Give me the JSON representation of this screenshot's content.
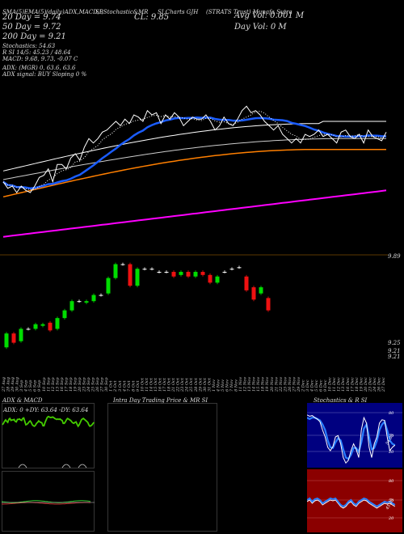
{
  "header": {
    "top_line": [
      "SMA(5)EMA(5)(daily)ADX,MACD,B",
      "SI,Stochastic&MR",
      "SI,Charts GJH",
      "(STRATS Trust) Munafa Sutra"
    ],
    "cl": "CL: 9.85",
    "ma20": "20  Day = 9.74",
    "ma50": "50  Day = 9.72",
    "ma200": "200  Day = 9.21",
    "stoch": "Stochastics: 54.63",
    "rsi": "R                SI 14/5: 45.23 / 48.64",
    "macd": "MACD: 9.68, 9.73, -0.07 C",
    "avg_vol": "Avg Vol: 0.001 M",
    "day_vol": "Day Vol: 0   M",
    "adx": "ADX:                              (MGR) 0, 63.6,  63.6",
    "adx_signal": "ADX  signal:                                     BUY Sloping 0 %"
  },
  "price_axis": {
    "top_label": "9.89",
    "low1": "9.25",
    "low2": "9.21",
    "low3": "9.21"
  },
  "dates": [
    "27 Aug",
    "28 Aug",
    "29 Aug",
    "30 Aug",
    "3 Sep",
    "4 Sep",
    "5 Sep",
    "6 Sep",
    "9 Sep",
    "10 Sep",
    "11 Sep",
    "12 Sep",
    "13 Sep",
    "16 Sep",
    "17 Sep",
    "18 Sep",
    "19 Sep",
    "20 Sep",
    "23 Sep",
    "24 Sep",
    "25 Sep",
    "26 Sep",
    "27 Sep",
    "30 Sep",
    "1 Oct",
    "2 Oct",
    "3 Oct",
    "4 Oct",
    "7 Oct",
    "8 Oct",
    "9 Oct",
    "10 Oct",
    "11 Oct",
    "14 Oct",
    "15 Oct",
    "16 Oct",
    "17 Oct",
    "18 Oct",
    "21 Oct",
    "22 Oct",
    "23 Oct",
    "24 Oct",
    "25 Oct",
    "28 Oct",
    "29 Oct",
    "30 Oct",
    "31 Oct",
    "1 Nov",
    "4 Nov",
    "5 Nov",
    "6 Nov",
    "7 Nov",
    "8 Nov",
    "11 Nov",
    "12 Nov",
    "13 Nov",
    "14 Nov",
    "15 Nov",
    "18 Nov",
    "19 Nov",
    "20 Nov",
    "21 Nov",
    "22 Nov",
    "25 Nov",
    "26 Nov",
    "27 Nov",
    "29 Nov",
    "2 Dec",
    "3 Dec",
    "4 Dec",
    "5 Dec",
    "6 Dec",
    "9 Dec",
    "10 Dec",
    "11 Dec",
    "12 Dec",
    "13 Dec",
    "16 Dec",
    "17 Dec",
    "18 Dec",
    "19 Dec",
    "20 Dec",
    "23 Dec",
    "24 Dec",
    "26 Dec",
    "27 Dec"
  ],
  "panels": {
    "adx_title": "ADX  & MACD",
    "adx_values": "ADX: 0   +DY: 63.64   -DY: 63.64",
    "intraday_title": "Intra  Day Trading Price  & MR                   SI",
    "stoch_title": "Stochastics & R                   SI",
    "stoch_ticks": [
      "80",
      "50",
      "20"
    ],
    "stoch_val": "54.63",
    "rsi_ticks": [
      "80",
      "50",
      "20"
    ],
    "rsi_val": "45.23"
  },
  "colors": {
    "price": "#ffffff",
    "dotted": "#ffffff",
    "ma20": "#1a5cff",
    "ma50": "#cccccc",
    "ma100": "#ffffff",
    "ma200": "#ff7f00",
    "ma_long": "#ff00ff",
    "up": "#00dd00",
    "down": "#ee1111",
    "adx": "#44cc00",
    "rsi_bg": "#8b0000",
    "stoch_bg": "#000080"
  },
  "chart_data": {
    "type": "line",
    "title": "",
    "series": [
      {
        "values": [
          9.52,
          9.49,
          9.5,
          9.47,
          9.5,
          9.48,
          9.47,
          9.5,
          9.54,
          9.55,
          9.58,
          9.52,
          9.6,
          9.6,
          9.58,
          9.63,
          9.65,
          9.62,
          9.68,
          9.72,
          9.7,
          9.72,
          9.75,
          9.76,
          9.78,
          9.8,
          9.78,
          9.81,
          9.79,
          9.83,
          9.82,
          9.8,
          9.85,
          9.83,
          9.84,
          9.79,
          9.83,
          9.81,
          9.84,
          9.82,
          9.78,
          9.8,
          9.82,
          9.81,
          9.81,
          9.83,
          9.8,
          9.76,
          9.78,
          9.82,
          9.79,
          9.78,
          9.81,
          9.85,
          9.87,
          9.84,
          9.85,
          9.83,
          9.8,
          9.78,
          9.76,
          9.78,
          9.74,
          9.72,
          9.7,
          9.72,
          9.7,
          9.74,
          9.73,
          9.74,
          9.76,
          9.73,
          9.74,
          9.72,
          9.7,
          9.75,
          9.76,
          9.73,
          9.72,
          9.74,
          9.7,
          9.76,
          9.73,
          9.72,
          9.71,
          9.75
        ]
      }
    ],
    "candles": [
      {
        "o": 9.21,
        "c": 9.3,
        "h": 9.31,
        "l": 9.2
      },
      {
        "o": 9.3,
        "c": 9.24,
        "h": 9.31,
        "l": 9.23
      },
      {
        "o": 9.25,
        "c": 9.33,
        "h": 9.34,
        "l": 9.24
      },
      {
        "o": 9.33,
        "c": 9.33,
        "h": 9.34,
        "l": 9.32
      },
      {
        "o": 9.33,
        "c": 9.36,
        "h": 9.37,
        "l": 9.32
      },
      {
        "o": 9.35,
        "c": 9.36,
        "h": 9.37,
        "l": 9.34
      },
      {
        "o": 9.37,
        "c": 9.32,
        "h": 9.38,
        "l": 9.31
      },
      {
        "o": 9.33,
        "c": 9.4,
        "h": 9.41,
        "l": 9.32
      },
      {
        "o": 9.4,
        "c": 9.45,
        "h": 9.46,
        "l": 9.39
      },
      {
        "o": 9.45,
        "c": 9.51,
        "h": 9.52,
        "l": 9.44
      },
      {
        "o": 9.51,
        "c": 9.51,
        "h": 9.52,
        "l": 9.5
      },
      {
        "o": 9.5,
        "c": 9.51,
        "h": 9.52,
        "l": 9.49
      },
      {
        "o": 9.51,
        "c": 9.55,
        "h": 9.56,
        "l": 9.5
      },
      {
        "o": 9.55,
        "c": 9.55,
        "h": 9.56,
        "l": 9.54
      },
      {
        "o": 9.56,
        "c": 9.66,
        "h": 9.67,
        "l": 9.55
      },
      {
        "o": 9.66,
        "c": 9.75,
        "h": 9.76,
        "l": 9.65
      },
      {
        "o": 9.75,
        "c": 9.75,
        "h": 9.76,
        "l": 9.74
      },
      {
        "o": 9.75,
        "c": 9.61,
        "h": 9.76,
        "l": 9.6
      },
      {
        "o": 9.61,
        "c": 9.72,
        "h": 9.73,
        "l": 9.6
      },
      {
        "o": 9.72,
        "c": 9.72,
        "h": 9.73,
        "l": 9.71
      },
      {
        "o": 9.72,
        "c": 9.72,
        "h": 9.73,
        "l": 9.71
      },
      {
        "o": 9.7,
        "c": 9.7,
        "h": 9.71,
        "l": 9.69
      },
      {
        "o": 9.7,
        "c": 9.7,
        "h": 9.71,
        "l": 9.69
      },
      {
        "o": 9.7,
        "c": 9.67,
        "h": 9.71,
        "l": 9.66
      },
      {
        "o": 9.68,
        "c": 9.7,
        "h": 9.71,
        "l": 9.67
      },
      {
        "o": 9.7,
        "c": 9.67,
        "h": 9.71,
        "l": 9.66
      },
      {
        "o": 9.67,
        "c": 9.7,
        "h": 9.71,
        "l": 9.66
      },
      {
        "o": 9.7,
        "c": 9.68,
        "h": 9.71,
        "l": 9.67
      },
      {
        "o": 9.68,
        "c": 9.63,
        "h": 9.69,
        "l": 9.62
      },
      {
        "o": 9.63,
        "c": 9.67,
        "h": 9.68,
        "l": 9.62
      },
      {
        "o": 9.7,
        "c": 9.7,
        "h": 9.71,
        "l": 9.69
      },
      {
        "o": 9.72,
        "c": 9.72,
        "h": 9.73,
        "l": 9.71
      },
      {
        "o": 9.73,
        "c": 9.73,
        "h": 9.74,
        "l": 9.72
      },
      {
        "o": 9.67,
        "c": 9.58,
        "h": 9.68,
        "l": 9.57
      },
      {
        "o": 9.6,
        "c": 9.52,
        "h": 9.61,
        "l": 9.51
      },
      {
        "o": 9.56,
        "c": 9.6,
        "h": 9.61,
        "l": 9.55
      },
      {
        "o": 9.53,
        "c": 9.45,
        "h": 9.54,
        "l": 9.44
      }
    ]
  }
}
